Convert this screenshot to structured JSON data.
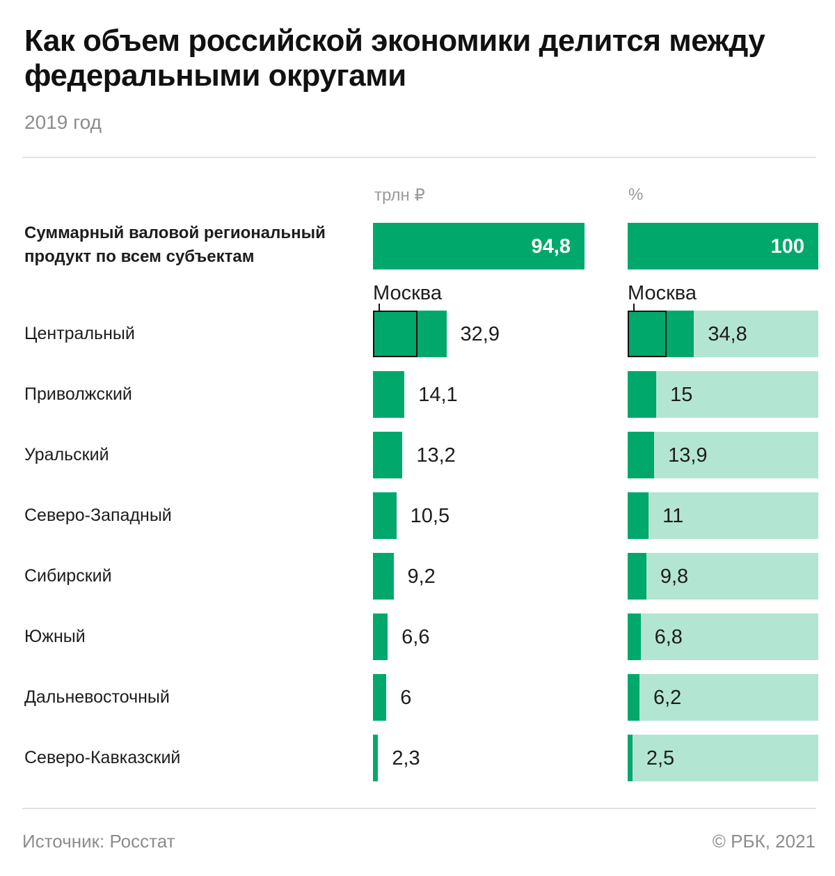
{
  "title": "Как объем российской экономики делится между федеральными округами",
  "subtitle": "2019 год",
  "colors": {
    "bar": "#00a86b",
    "track": "#b3e5d3",
    "moscow_outline": "#111111"
  },
  "chart_data": {
    "type": "bar",
    "orientation": "horizontal",
    "total": {
      "label": "Суммарный валовой региональный продукт по всем субъектам",
      "trln": 94.8,
      "trln_label": "94,8",
      "pct": 100,
      "pct_label": "100"
    },
    "panels": [
      {
        "key": "trln",
        "unit_label": "трлн ₽"
      },
      {
        "key": "pct",
        "unit_label": "%"
      }
    ],
    "moscow": {
      "label": "Москва",
      "panel_trln_label": "Москва",
      "panel_pct_label": "Москва"
    },
    "rows": [
      {
        "label": "Центральный",
        "trln": 32.9,
        "trln_label": "32,9",
        "pct": 34.8,
        "pct_label": "34,8"
      },
      {
        "label": "Приволжский",
        "trln": 14.1,
        "trln_label": "14,1",
        "pct": 15,
        "pct_label": "15"
      },
      {
        "label": "Уральский",
        "trln": 13.2,
        "trln_label": "13,2",
        "pct": 13.9,
        "pct_label": "13,9"
      },
      {
        "label": "Северо-Западный",
        "trln": 10.5,
        "trln_label": "10,5",
        "pct": 11,
        "pct_label": "11"
      },
      {
        "label": "Сибирский",
        "trln": 9.2,
        "trln_label": "9,2",
        "pct": 9.8,
        "pct_label": "9,8"
      },
      {
        "label": "Южный",
        "trln": 6.6,
        "trln_label": "6,6",
        "pct": 6.8,
        "pct_label": "6,8"
      },
      {
        "label": "Дальневосточный",
        "trln": 6,
        "trln_label": "6",
        "pct": 6.2,
        "pct_label": "6,2"
      },
      {
        "label": "Северо-Кавказский",
        "trln": 2.3,
        "trln_label": "2,3",
        "pct": 2.5,
        "pct_label": "2,5"
      }
    ],
    "xlim_trln": [
      0,
      94.8
    ],
    "xlim_pct": [
      0,
      100
    ],
    "legend": "none",
    "grid": false
  },
  "footer": {
    "source": "Источник: Росстат",
    "copyright": "© РБК, 2021"
  }
}
